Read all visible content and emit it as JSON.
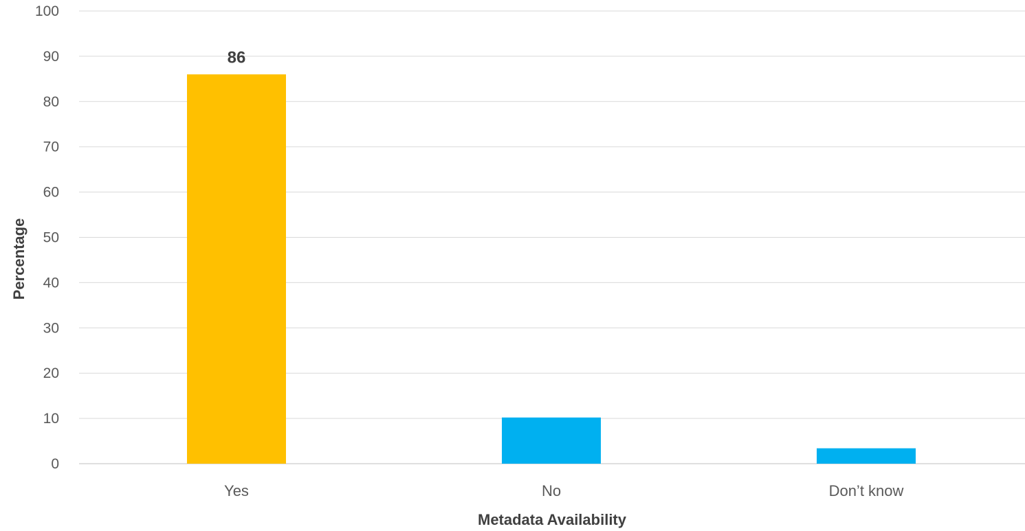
{
  "chart_data": {
    "type": "bar",
    "categories": [
      "Yes",
      "No",
      "Don’t know"
    ],
    "values": [
      86,
      10.2,
      3.4
    ],
    "bar_colors": [
      "#FFC000",
      "#00B0F0",
      "#00B0F0"
    ],
    "data_labels": [
      "86",
      "",
      ""
    ],
    "xlabel": "Metadata Availability",
    "ylabel": "Percentage",
    "ylim": [
      0,
      100
    ],
    "yticks": [
      0,
      10,
      20,
      30,
      40,
      50,
      60,
      70,
      80,
      90,
      100
    ],
    "grid": true,
    "legend": "none"
  }
}
